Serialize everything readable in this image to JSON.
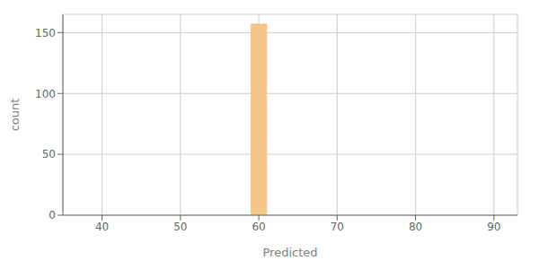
{
  "chart_data": {
    "type": "histogram",
    "bins": [
      59,
      61
    ],
    "values": [
      157
    ],
    "color": "#F5C58A",
    "xlabel": "Predicted",
    "ylabel": "count",
    "xlim": [
      35,
      93
    ],
    "ylim": [
      0,
      165
    ],
    "xticks": [
      40,
      50,
      60,
      70,
      80,
      90
    ],
    "yticks": [
      0,
      50,
      100,
      150
    ],
    "grid": true
  }
}
